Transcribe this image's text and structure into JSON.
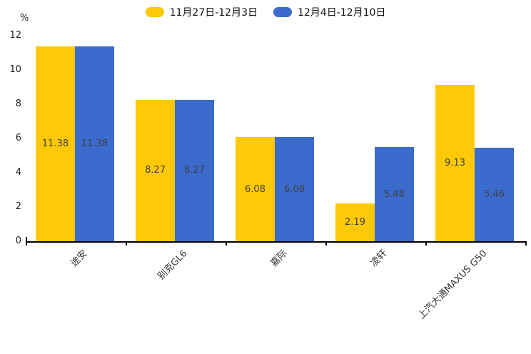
{
  "chart_data": {
    "type": "bar",
    "title": "",
    "ylabel": "%",
    "ylim": [
      0,
      12
    ],
    "yticks": [
      0,
      2,
      4,
      6,
      8,
      10,
      12
    ],
    "grid": false,
    "legend_position": "top-center",
    "value_labels": "inside-center",
    "value_label_color": "#404040",
    "categories": [
      "途安",
      "别克GL6",
      "嘉际",
      "凌轩",
      "上汽大通MAXUS G50"
    ],
    "series": [
      {
        "name": "11月27日-12月3日",
        "color": "#FFC907",
        "values": [
          11.38,
          8.27,
          6.08,
          2.19,
          9.13
        ]
      },
      {
        "name": "12月4日-12月10日",
        "color": "#3A6BCD",
        "values": [
          11.38,
          8.27,
          6.08,
          5.48,
          5.46
        ]
      }
    ]
  }
}
